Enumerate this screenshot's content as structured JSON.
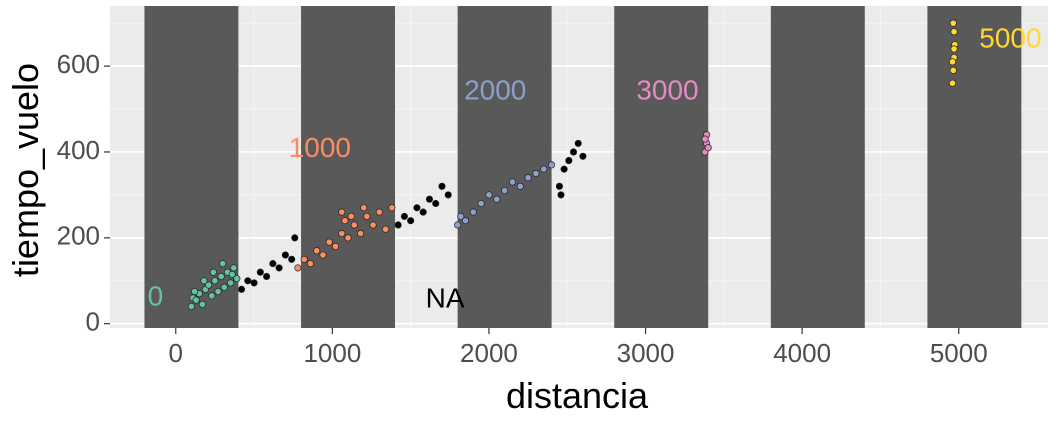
{
  "chart_data": {
    "type": "scatter",
    "title": "",
    "xlabel": "distancia",
    "ylabel": "tiempo_vuelo",
    "xlim": [
      -420,
      5570
    ],
    "ylim": [
      -10,
      740
    ],
    "x_ticks": [
      "0",
      "1000",
      "2000",
      "3000",
      "4000",
      "5000"
    ],
    "x_tick_values": [
      0,
      1000,
      2000,
      3000,
      4000,
      5000
    ],
    "y_ticks": [
      "0",
      "200",
      "400",
      "600"
    ],
    "y_tick_values": [
      0,
      200,
      400,
      600
    ],
    "grid": true,
    "legend": "none",
    "bands": [
      {
        "xmin": -200,
        "xmax": 400
      },
      {
        "xmin": 800,
        "xmax": 1400
      },
      {
        "xmin": 1800,
        "xmax": 2400
      },
      {
        "xmin": 2800,
        "xmax": 3400
      },
      {
        "xmin": 3800,
        "xmax": 4400
      },
      {
        "xmin": 4800,
        "xmax": 5400
      }
    ],
    "series": [
      {
        "label": "0",
        "color": "#66c2a5",
        "label_pos": [
          -130,
          60
        ],
        "points": [
          [
            100,
            40
          ],
          [
            110,
            60
          ],
          [
            130,
            55
          ],
          [
            150,
            70
          ],
          [
            170,
            45
          ],
          [
            190,
            80
          ],
          [
            210,
            90
          ],
          [
            230,
            65
          ],
          [
            250,
            100
          ],
          [
            270,
            75
          ],
          [
            290,
            110
          ],
          [
            310,
            85
          ],
          [
            330,
            120
          ],
          [
            350,
            95
          ],
          [
            370,
            130
          ],
          [
            390,
            105
          ],
          [
            120,
            75
          ],
          [
            180,
            100
          ],
          [
            240,
            120
          ],
          [
            300,
            140
          ],
          [
            360,
            115
          ]
        ]
      },
      {
        "label": "1000",
        "color": "#fc8d62",
        "label_pos": [
          920,
          405
        ],
        "points": [
          [
            780,
            130
          ],
          [
            820,
            150
          ],
          [
            860,
            140
          ],
          [
            900,
            170
          ],
          [
            940,
            160
          ],
          [
            980,
            190
          ],
          [
            1020,
            180
          ],
          [
            1060,
            210
          ],
          [
            1080,
            240
          ],
          [
            1100,
            200
          ],
          [
            1140,
            230
          ],
          [
            1180,
            210
          ],
          [
            1220,
            250
          ],
          [
            1260,
            230
          ],
          [
            1300,
            260
          ],
          [
            1340,
            220
          ],
          [
            1380,
            270
          ],
          [
            1060,
            260
          ],
          [
            1120,
            250
          ],
          [
            1200,
            270
          ]
        ]
      },
      {
        "label": "NA",
        "color": "#000000",
        "label_pos": [
          1720,
          55
        ],
        "points": [
          [
            420,
            80
          ],
          [
            460,
            100
          ],
          [
            500,
            95
          ],
          [
            540,
            120
          ],
          [
            580,
            110
          ],
          [
            620,
            140
          ],
          [
            660,
            130
          ],
          [
            700,
            160
          ],
          [
            740,
            150
          ],
          [
            760,
            200
          ],
          [
            1420,
            230
          ],
          [
            1460,
            250
          ],
          [
            1500,
            240
          ],
          [
            1540,
            270
          ],
          [
            1580,
            260
          ],
          [
            1620,
            290
          ],
          [
            1660,
            280
          ],
          [
            1700,
            320
          ],
          [
            1740,
            300
          ],
          [
            2450,
            320
          ],
          [
            2480,
            360
          ],
          [
            2510,
            380
          ],
          [
            2540,
            400
          ],
          [
            2570,
            420
          ],
          [
            2600,
            390
          ],
          [
            2460,
            300
          ]
        ]
      },
      {
        "label": "2000",
        "color": "#8da0cb",
        "label_pos": [
          2040,
          540
        ],
        "points": [
          [
            1800,
            230
          ],
          [
            1820,
            250
          ],
          [
            1850,
            240
          ],
          [
            1900,
            260
          ],
          [
            1950,
            280
          ],
          [
            2000,
            300
          ],
          [
            2050,
            290
          ],
          [
            2100,
            310
          ],
          [
            2150,
            330
          ],
          [
            2200,
            320
          ],
          [
            2250,
            340
          ],
          [
            2300,
            350
          ],
          [
            2350,
            360
          ],
          [
            2400,
            370
          ]
        ]
      },
      {
        "label": "3000",
        "color": "#e78ac3",
        "label_pos": [
          3140,
          540
        ],
        "points": [
          [
            3380,
            400
          ],
          [
            3390,
            420
          ],
          [
            3400,
            410
          ],
          [
            3390,
            440
          ],
          [
            3380,
            430
          ]
        ]
      },
      {
        "label": "5000",
        "color": "#ffd92f",
        "label_pos": [
          5330,
          660
        ],
        "points": [
          [
            4960,
            560
          ],
          [
            4965,
            590
          ],
          [
            4970,
            620
          ],
          [
            4975,
            650
          ],
          [
            4970,
            680
          ],
          [
            4965,
            700
          ],
          [
            4960,
            610
          ],
          [
            4970,
            640
          ]
        ]
      }
    ]
  }
}
